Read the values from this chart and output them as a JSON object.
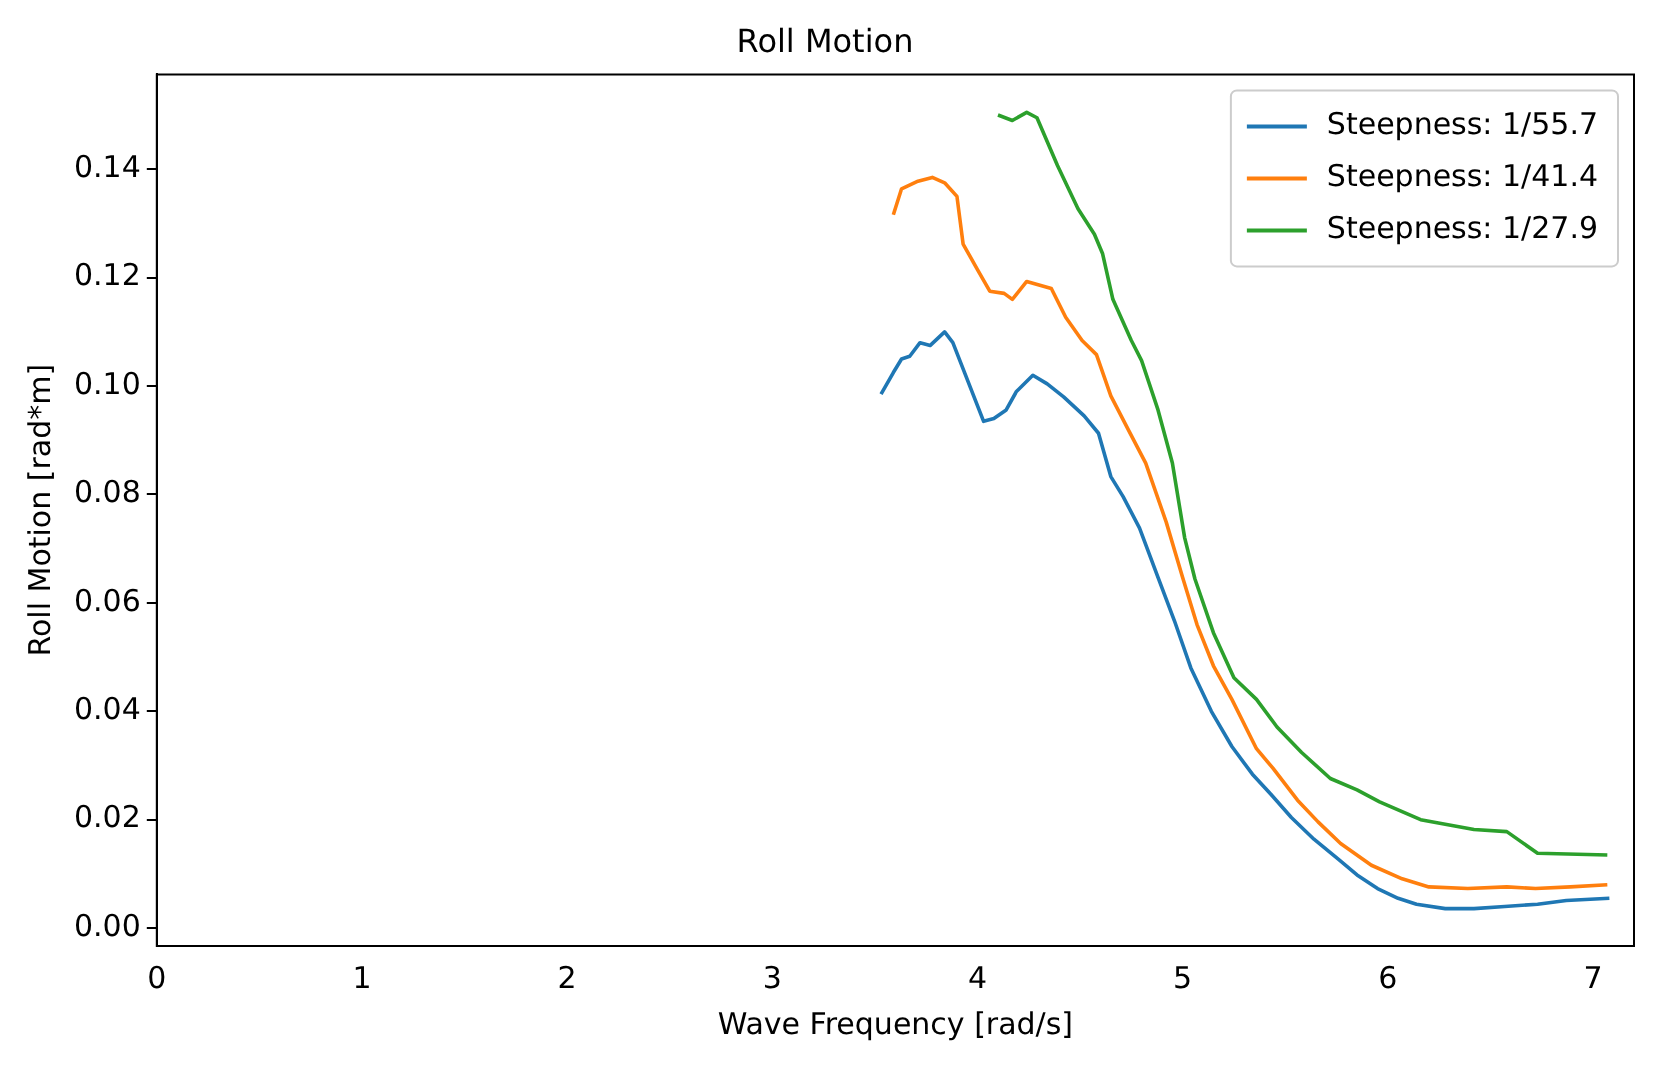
{
  "chart_data": {
    "type": "line",
    "title": "Roll Motion",
    "xlabel": "Wave Frequency [rad/s]",
    "ylabel": "Roll Motion [rad*m]",
    "xlim": [
      0,
      7.2
    ],
    "xticks": [
      0,
      1,
      2,
      3,
      4,
      5,
      6,
      7
    ],
    "ylim": [
      -0.0033,
      0.1575
    ],
    "yticks": [
      {
        "value": 0,
        "label": "0.00"
      },
      {
        "value": 0.02,
        "label": "0.02"
      },
      {
        "value": 0.04,
        "label": "0.04"
      },
      {
        "value": 0.06,
        "label": "0.06"
      },
      {
        "value": 0.08,
        "label": "0.08"
      },
      {
        "value": 0.1,
        "label": "0.10"
      },
      {
        "value": 0.12,
        "label": "0.12"
      },
      {
        "value": 0.14,
        "label": "0.14"
      }
    ],
    "grid": false,
    "legend": "top right",
    "marker": "none",
    "line_style": "solid",
    "series": [
      {
        "name": "Steepness: 1/55.7",
        "color": "#1f77b4",
        "x": [
          3.53,
          3.59,
          3.63,
          3.67,
          3.72,
          3.77,
          3.84,
          3.88,
          4.03,
          4.08,
          4.14,
          4.19,
          4.27,
          4.34,
          4.42,
          4.52,
          4.59,
          4.65,
          4.71,
          4.79,
          4.88,
          4.96,
          5.04,
          5.14,
          5.24,
          5.34,
          5.43,
          5.53,
          5.64,
          5.76,
          5.85,
          5.95,
          6.05,
          6.14,
          6.28,
          6.42,
          6.57,
          6.73,
          6.87,
          7.08
        ],
        "values": [
          0.0985,
          0.1025,
          0.105,
          0.1055,
          0.108,
          0.1075,
          0.11,
          0.108,
          0.0935,
          0.094,
          0.0956,
          0.099,
          0.102,
          0.1004,
          0.098,
          0.0945,
          0.0913,
          0.0833,
          0.0796,
          0.0738,
          0.0647,
          0.0567,
          0.048,
          0.04,
          0.0335,
          0.0284,
          0.0247,
          0.0204,
          0.0164,
          0.0127,
          0.0098,
          0.0073,
          0.0055,
          0.0044,
          0.0036,
          0.0036,
          0.004,
          0.0044,
          0.0051,
          0.0055
        ]
      },
      {
        "name": "Steepness: 1/41.4",
        "color": "#ff7f0e",
        "x": [
          3.59,
          3.63,
          3.71,
          3.78,
          3.84,
          3.9,
          3.93,
          4.0,
          4.06,
          4.13,
          4.17,
          4.24,
          4.36,
          4.43,
          4.51,
          4.58,
          4.65,
          4.74,
          4.82,
          4.92,
          5.0,
          5.07,
          5.15,
          5.24,
          5.36,
          5.44,
          5.56,
          5.66,
          5.77,
          5.92,
          6.07,
          6.2,
          6.39,
          6.58,
          6.72,
          6.89,
          7.07
        ],
        "values": [
          0.1316,
          0.1364,
          0.1378,
          0.1385,
          0.1375,
          0.135,
          0.1262,
          0.1215,
          0.1175,
          0.1171,
          0.116,
          0.1193,
          0.118,
          0.1127,
          0.1084,
          0.1058,
          0.0982,
          0.0916,
          0.0858,
          0.0749,
          0.0647,
          0.056,
          0.0484,
          0.0422,
          0.0331,
          0.0295,
          0.0236,
          0.0196,
          0.0156,
          0.0116,
          0.0091,
          0.0076,
          0.0073,
          0.0076,
          0.0073,
          0.0076,
          0.008
        ]
      },
      {
        "name": "Steepness: 1/27.9",
        "color": "#2ca02c",
        "x": [
          4.1,
          4.17,
          4.24,
          4.29,
          4.39,
          4.49,
          4.57,
          4.61,
          4.66,
          4.75,
          4.8,
          4.88,
          4.95,
          5.01,
          5.06,
          5.15,
          5.25,
          5.36,
          5.46,
          5.58,
          5.72,
          5.85,
          5.96,
          6.16,
          6.42,
          6.58,
          6.73,
          7.07
        ],
        "values": [
          0.15,
          0.149,
          0.1505,
          0.1495,
          0.1407,
          0.1327,
          0.128,
          0.1244,
          0.116,
          0.1084,
          0.1047,
          0.0956,
          0.0858,
          0.072,
          0.0644,
          0.0545,
          0.0462,
          0.0422,
          0.0371,
          0.0324,
          0.0276,
          0.0255,
          0.0233,
          0.02,
          0.0182,
          0.0178,
          0.0138,
          0.0135
        ]
      }
    ]
  }
}
